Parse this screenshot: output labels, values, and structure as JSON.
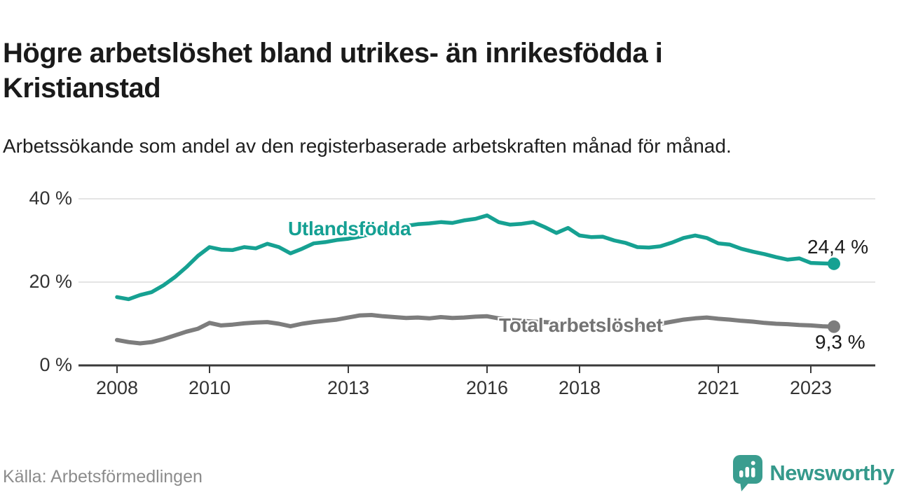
{
  "header": {
    "title": "Högre arbetslöshet bland utrikes- än inrikesfödda i Kristianstad",
    "subtitle": "Arbetssökande som andel av den registerbaserade arbetskraften månad för månad."
  },
  "footer": {
    "source": "Källa: Arbetsförmedlingen",
    "brand": "Newsworthy"
  },
  "colors": {
    "foreign_line": "#16a192",
    "total_line": "#7d7d7d",
    "grid": "#dcdcdc",
    "axis": "#3a3a3a",
    "brand_teal": "#3a9d8f",
    "title_text": "#1a1a1a",
    "axis_text": "#333333",
    "source_text": "#8c8c8c"
  },
  "chart_data": {
    "type": "line",
    "title": "Högre arbetslöshet bland utrikes- än inrikesfödda i Kristianstad",
    "subtitle": "Arbetssökande som andel av den registerbaserade arbetskraften månad för månad.",
    "xlabel": "",
    "ylabel": "",
    "unit": "%",
    "grid": "horizontal",
    "legend_position": "inline-labels",
    "xlim": [
      2007.2,
      2024.4
    ],
    "ylim": [
      0,
      40
    ],
    "yticks": [
      {
        "value": 0,
        "label": "0 %"
      },
      {
        "value": 20,
        "label": "20 %"
      },
      {
        "value": 40,
        "label": "40 %"
      }
    ],
    "xticks": [
      {
        "value": 2008,
        "label": "2008"
      },
      {
        "value": 2010,
        "label": "2010"
      },
      {
        "value": 2013,
        "label": "2013"
      },
      {
        "value": 2016,
        "label": "2016"
      },
      {
        "value": 2018,
        "label": "2018"
      },
      {
        "value": 2021,
        "label": "2021"
      },
      {
        "value": 2023,
        "label": "2023"
      }
    ],
    "x_start": 2008,
    "x_step": 0.25,
    "series": [
      {
        "name": "Utlandsfödda",
        "color": "#16a192",
        "end_label": "24,4 %",
        "end_value": 24.4,
        "values": [
          16.4,
          15.9,
          16.9,
          17.6,
          19.2,
          21.2,
          23.6,
          26.3,
          28.4,
          27.8,
          27.7,
          28.4,
          28.1,
          29.2,
          28.4,
          26.9,
          28.0,
          29.3,
          29.6,
          30.1,
          30.4,
          30.9,
          31.6,
          32.4,
          33.0,
          33.5,
          33.9,
          34.1,
          34.4,
          34.2,
          34.8,
          35.2,
          36.0,
          34.4,
          33.8,
          34.0,
          34.4,
          33.2,
          31.8,
          33.0,
          31.2,
          30.8,
          30.9,
          30.0,
          29.4,
          28.4,
          28.3,
          28.6,
          29.5,
          30.6,
          31.2,
          30.6,
          29.3,
          29.0,
          28.0,
          27.3,
          26.7,
          26.0,
          25.4,
          25.7,
          24.6,
          24.5,
          24.4
        ]
      },
      {
        "name": "Total arbetslöshet",
        "color": "#7d7d7d",
        "end_label": "9,3 %",
        "end_value": 9.3,
        "values": [
          6.1,
          5.6,
          5.3,
          5.6,
          6.3,
          7.2,
          8.1,
          8.8,
          10.2,
          9.6,
          9.8,
          10.1,
          10.3,
          10.4,
          10.0,
          9.4,
          10.0,
          10.4,
          10.7,
          11.0,
          11.5,
          12.0,
          12.1,
          11.8,
          11.6,
          11.4,
          11.5,
          11.3,
          11.6,
          11.4,
          11.5,
          11.7,
          11.8,
          11.3,
          10.9,
          10.7,
          10.5,
          10.4,
          10.2,
          10.1,
          10.0,
          9.9,
          9.8,
          9.7,
          9.6,
          9.7,
          9.8,
          10.0,
          10.5,
          11.0,
          11.3,
          11.5,
          11.2,
          11.0,
          10.7,
          10.5,
          10.2,
          10.0,
          9.9,
          9.7,
          9.6,
          9.4,
          9.3
        ]
      }
    ]
  }
}
